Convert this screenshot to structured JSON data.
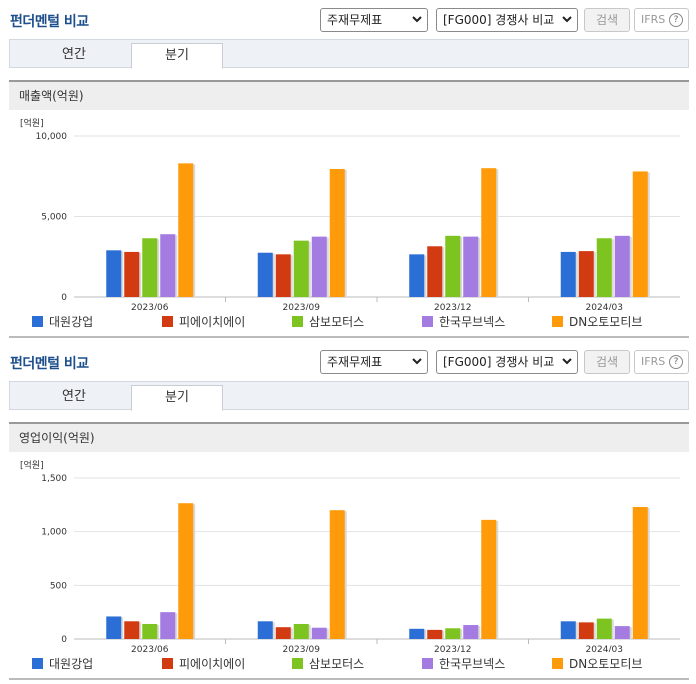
{
  "colors": {
    "title": "#1d4f8c",
    "series": [
      "#2b6fd6",
      "#d23a12",
      "#7ec421",
      "#a47be0",
      "#ff9b0a"
    ]
  },
  "panels": [
    {
      "title": "펀더멘털 비교",
      "select1": "주재무제표",
      "select2": "[FG000] 경쟁사 비교",
      "search_label": "검색",
      "ifrs_label": "IFRS",
      "help_glyph": "?",
      "tabs": [
        {
          "label": "연간"
        },
        {
          "label": "분기"
        }
      ],
      "active_tab": "분기",
      "chart_title": "매출액(억원)",
      "unit": "[억원]",
      "legend": [
        "대원강업",
        "피에이치에이",
        "삼보모터스",
        "한국무브넥스",
        "DN오토모티브"
      ]
    },
    {
      "title": "펀더멘털 비교",
      "select1": "주재무제표",
      "select2": "[FG000] 경쟁사 비교",
      "search_label": "검색",
      "ifrs_label": "IFRS",
      "help_glyph": "?",
      "tabs": [
        {
          "label": "연간"
        },
        {
          "label": "분기"
        }
      ],
      "active_tab": "분기",
      "chart_title": "영업이익(억원)",
      "unit": "[억원]",
      "legend": [
        "대원강업",
        "피에이치에이",
        "삼보모터스",
        "한국무브넥스",
        "DN오토모티브"
      ]
    }
  ],
  "chart_data": [
    {
      "type": "bar",
      "title": "매출액(억원)",
      "ylabel": "[억원]",
      "categories": [
        "2023/06",
        "2023/09",
        "2023/12",
        "2024/03"
      ],
      "ylim": [
        0,
        10000
      ],
      "yticks": [
        0,
        5000,
        10000
      ],
      "ytick_labels": [
        "0",
        "5,000",
        "10,000"
      ],
      "grid": true,
      "legend_position": "bottom",
      "series": [
        {
          "name": "대원강업",
          "values": [
            2900,
            2750,
            2650,
            2800
          ]
        },
        {
          "name": "피에이치에이",
          "values": [
            2800,
            2650,
            3150,
            2850
          ]
        },
        {
          "name": "삼보모터스",
          "values": [
            3650,
            3500,
            3800,
            3650
          ]
        },
        {
          "name": "한국무브넥스",
          "values": [
            3900,
            3750,
            3750,
            3800
          ]
        },
        {
          "name": "DN오토모티브",
          "values": [
            8300,
            7950,
            8000,
            7800
          ]
        }
      ]
    },
    {
      "type": "bar",
      "title": "영업이익(억원)",
      "ylabel": "[억원]",
      "categories": [
        "2023/06",
        "2023/09",
        "2023/12",
        "2024/03"
      ],
      "ylim": [
        0,
        1500
      ],
      "yticks": [
        0,
        500,
        1000,
        1500
      ],
      "ytick_labels": [
        "0",
        "500",
        "1,000",
        "1,500"
      ],
      "grid": true,
      "legend_position": "bottom",
      "series": [
        {
          "name": "대원강업",
          "values": [
            210,
            165,
            95,
            165
          ]
        },
        {
          "name": "피에이치에이",
          "values": [
            165,
            110,
            85,
            155
          ]
        },
        {
          "name": "삼보모터스",
          "values": [
            140,
            140,
            100,
            190
          ]
        },
        {
          "name": "한국무브넥스",
          "values": [
            250,
            105,
            130,
            120
          ]
        },
        {
          "name": "DN오토모티브",
          "values": [
            1265,
            1200,
            1110,
            1230
          ]
        }
      ]
    }
  ]
}
